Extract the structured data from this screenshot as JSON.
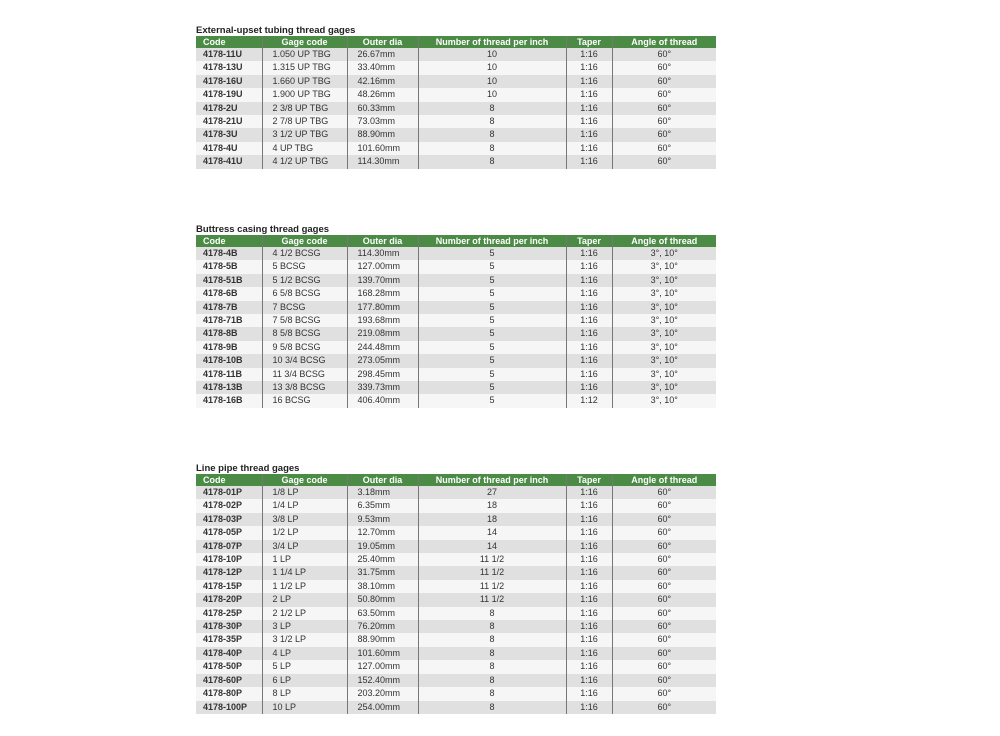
{
  "colors": {
    "header": "#4b8b46",
    "row_odd": "#e0e0e0",
    "row_even": "#f6f6f6"
  },
  "columns": [
    "Code",
    "Gage code",
    "Outer dia",
    "Number of thread per inch",
    "Taper",
    "Angle of thread"
  ],
  "tables": [
    {
      "title": "External-upset tubing thread gages",
      "rows": [
        [
          "4178-11U",
          "1.050 UP TBG",
          "26.67mm",
          "10",
          "1:16",
          "60°"
        ],
        [
          "4178-13U",
          "1.315 UP TBG",
          "33.40mm",
          "10",
          "1:16",
          "60°"
        ],
        [
          "4178-16U",
          "1.660 UP TBG",
          "42.16mm",
          "10",
          "1:16",
          "60°"
        ],
        [
          "4178-19U",
          "1.900 UP TBG",
          "48.26mm",
          "10",
          "1:16",
          "60°"
        ],
        [
          "4178-2U",
          "2 3/8 UP TBG",
          "60.33mm",
          "8",
          "1:16",
          "60°"
        ],
        [
          "4178-21U",
          "2 7/8 UP TBG",
          "73.03mm",
          "8",
          "1:16",
          "60°"
        ],
        [
          "4178-3U",
          "3 1/2 UP TBG",
          "88.90mm",
          "8",
          "1:16",
          "60°"
        ],
        [
          "4178-4U",
          "4 UP TBG",
          "101.60mm",
          "8",
          "1:16",
          "60°"
        ],
        [
          "4178-41U",
          "4 1/2 UP TBG",
          "114.30mm",
          "8",
          "1:16",
          "60°"
        ]
      ]
    },
    {
      "title": "Buttress casing thread gages",
      "rows": [
        [
          "4178-4B",
          "4 1/2 BCSG",
          "114.30mm",
          "5",
          "1:16",
          "3°, 10°"
        ],
        [
          "4178-5B",
          "5 BCSG",
          "127.00mm",
          "5",
          "1:16",
          "3°, 10°"
        ],
        [
          "4178-51B",
          "5 1/2 BCSG",
          "139.70mm",
          "5",
          "1:16",
          "3°, 10°"
        ],
        [
          "4178-6B",
          "6 5/8 BCSG",
          "168.28mm",
          "5",
          "1:16",
          "3°, 10°"
        ],
        [
          "4178-7B",
          "7 BCSG",
          "177.80mm",
          "5",
          "1:16",
          "3°, 10°"
        ],
        [
          "4178-71B",
          "7 5/8 BCSG",
          "193.68mm",
          "5",
          "1:16",
          "3°, 10°"
        ],
        [
          "4178-8B",
          "8 5/8 BCSG",
          "219.08mm",
          "5",
          "1:16",
          "3°, 10°"
        ],
        [
          "4178-9B",
          "9 5/8 BCSG",
          "244.48mm",
          "5",
          "1:16",
          "3°, 10°"
        ],
        [
          "4178-10B",
          "10 3/4 BCSG",
          "273.05mm",
          "5",
          "1:16",
          "3°, 10°"
        ],
        [
          "4178-11B",
          "11 3/4 BCSG",
          "298.45mm",
          "5",
          "1:16",
          "3°, 10°"
        ],
        [
          "4178-13B",
          "13 3/8 BCSG",
          "339.73mm",
          "5",
          "1:16",
          "3°, 10°"
        ],
        [
          "4178-16B",
          "16 BCSG",
          "406.40mm",
          "5",
          "1:12",
          "3°, 10°"
        ]
      ]
    },
    {
      "title": "Line pipe thread gages",
      "rows": [
        [
          "4178-01P",
          "1/8 LP",
          "3.18mm",
          "27",
          "1:16",
          "60°"
        ],
        [
          "4178-02P",
          "1/4 LP",
          "6.35mm",
          "18",
          "1:16",
          "60°"
        ],
        [
          "4178-03P",
          "3/8 LP",
          "9.53mm",
          "18",
          "1:16",
          "60°"
        ],
        [
          "4178-05P",
          "1/2 LP",
          "12.70mm",
          "14",
          "1:16",
          "60°"
        ],
        [
          "4178-07P",
          "3/4 LP",
          "19.05mm",
          "14",
          "1:16",
          "60°"
        ],
        [
          "4178-10P",
          "1 LP",
          "25.40mm",
          "11 1/2",
          "1:16",
          "60°"
        ],
        [
          "4178-12P",
          "1 1/4 LP",
          "31.75mm",
          "11 1/2",
          "1:16",
          "60°"
        ],
        [
          "4178-15P",
          "1 1/2 LP",
          "38.10mm",
          "11 1/2",
          "1:16",
          "60°"
        ],
        [
          "4178-20P",
          "2 LP",
          "50.80mm",
          "11 1/2",
          "1:16",
          "60°"
        ],
        [
          "4178-25P",
          "2 1/2 LP",
          "63.50mm",
          "8",
          "1:16",
          "60°"
        ],
        [
          "4178-30P",
          "3 LP",
          "76.20mm",
          "8",
          "1:16",
          "60°"
        ],
        [
          "4178-35P",
          "3 1/2 LP",
          "88.90mm",
          "8",
          "1:16",
          "60°"
        ],
        [
          "4178-40P",
          "4 LP",
          "101.60mm",
          "8",
          "1:16",
          "60°"
        ],
        [
          "4178-50P",
          "5 LP",
          "127.00mm",
          "8",
          "1:16",
          "60°"
        ],
        [
          "4178-60P",
          "6 LP",
          "152.40mm",
          "8",
          "1:16",
          "60°"
        ],
        [
          "4178-80P",
          "8 LP",
          "203.20mm",
          "8",
          "1:16",
          "60°"
        ],
        [
          "4178-100P",
          "10 LP",
          "254.00mm",
          "8",
          "1:16",
          "60°"
        ]
      ]
    }
  ]
}
